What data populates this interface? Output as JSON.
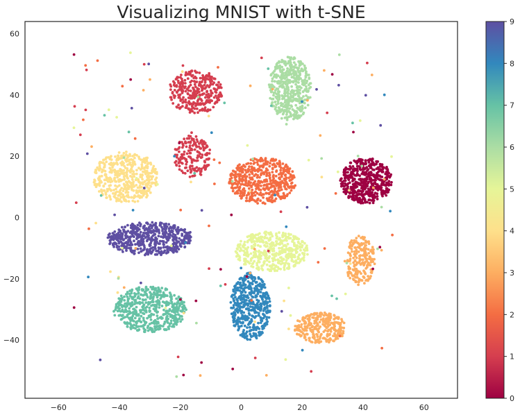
{
  "chart_data": {
    "type": "scatter",
    "title": "Visualizing MNIST with t-SNE",
    "xlabel": "",
    "ylabel": "",
    "xlim": [
      -71,
      71
    ],
    "ylim": [
      -59,
      64
    ],
    "xticks": [
      -60,
      -40,
      -20,
      0,
      20,
      40,
      60
    ],
    "yticks": [
      -40,
      -20,
      0,
      20,
      40,
      60
    ],
    "grid": false,
    "colormap": "Spectral",
    "colorbar": {
      "label": "",
      "ticks": [
        0,
        1,
        2,
        3,
        4,
        5,
        6,
        7,
        8,
        9
      ],
      "range": [
        0,
        9
      ],
      "colors": [
        "#9e0142",
        "#d53e4f",
        "#f46d43",
        "#fdae61",
        "#fee08b",
        "#e6f598",
        "#abdda4",
        "#66c2a5",
        "#3288bd",
        "#5e4fa2"
      ]
    },
    "clusters": [
      {
        "label": 0,
        "color": "#9e0142",
        "center": [
          41,
          12
        ],
        "spread": [
          8.5,
          7.5
        ],
        "count": 520
      },
      {
        "label": 1,
        "color": "#d53e4f",
        "center": [
          -15,
          41
        ],
        "spread": [
          9,
          7
        ],
        "count": 330
      },
      {
        "label": 1,
        "color": "#d53e4f",
        "center": [
          -16,
          20
        ],
        "spread": [
          6,
          7
        ],
        "count": 180
      },
      {
        "label": 2,
        "color": "#f46d43",
        "center": [
          7,
          12
        ],
        "spread": [
          11,
          7.5
        ],
        "count": 520
      },
      {
        "label": 3,
        "color": "#fdae61",
        "center": [
          26,
          -36
        ],
        "spread": [
          8.5,
          5
        ],
        "count": 300
      },
      {
        "label": 3,
        "color": "#fdae61",
        "center": [
          39,
          -14
        ],
        "spread": [
          5,
          8
        ],
        "count": 220
      },
      {
        "label": 4,
        "color": "#fee08b",
        "center": [
          -38,
          13
        ],
        "spread": [
          10.5,
          8.5
        ],
        "count": 480
      },
      {
        "label": 5,
        "color": "#e6f598",
        "center": [
          10,
          -11
        ],
        "spread": [
          12,
          6.5
        ],
        "count": 460
      },
      {
        "label": 6,
        "color": "#abdda4",
        "center": [
          16,
          42
        ],
        "spread": [
          7,
          10.5
        ],
        "count": 480
      },
      {
        "label": 7,
        "color": "#66c2a5",
        "center": [
          -30,
          -30
        ],
        "spread": [
          12,
          7.5
        ],
        "count": 520
      },
      {
        "label": 8,
        "color": "#3288bd",
        "center": [
          3,
          -29
        ],
        "spread": [
          6.5,
          11
        ],
        "count": 480
      },
      {
        "label": 9,
        "color": "#5e4fa2",
        "center": [
          -30,
          -7
        ],
        "spread": [
          14,
          5.5
        ],
        "count": 540
      }
    ],
    "outliers": 160
  }
}
